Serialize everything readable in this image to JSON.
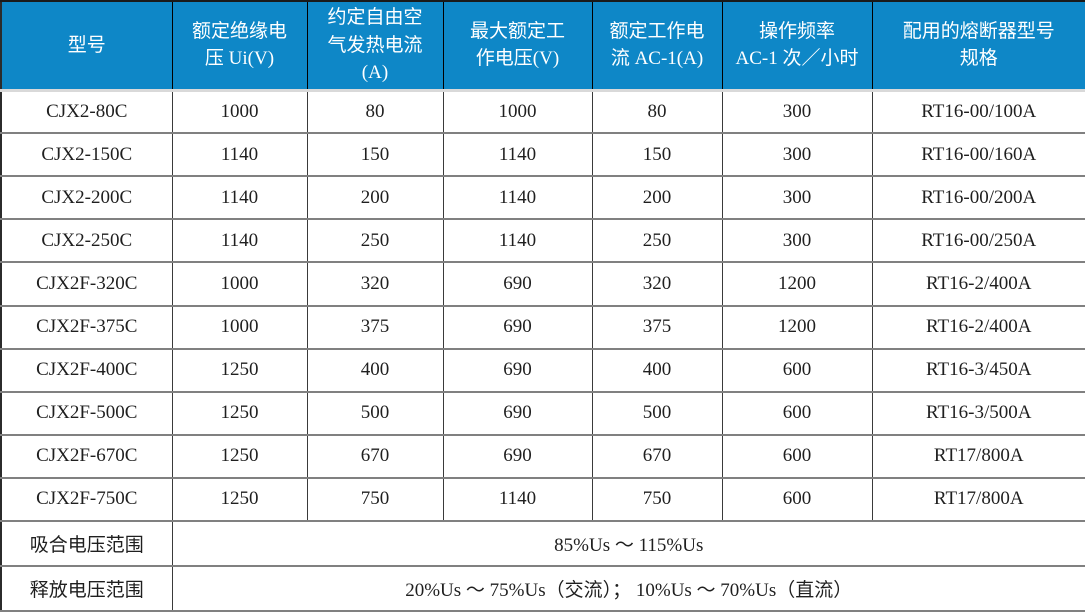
{
  "table": {
    "colors": {
      "header_bg": "#0e87c7",
      "header_text": "#ffffff",
      "grid_horizontal": "#808080",
      "grid_vertical": "#3a3a3a",
      "body_text": "#1f1f1f"
    },
    "columns": [
      "型号",
      "额定绝缘电\n压 Ui(V)",
      "约定自由空\n气发热电流\n(A)",
      "最大额定工\n作电压(V)",
      "额定工作电\n流 AC-1(A)",
      "操作频率\nAC-1 次／小时",
      "配用的熔断器型号\n规格"
    ],
    "rows": [
      [
        "CJX2-80C",
        "1000",
        "80",
        "1000",
        "80",
        "300",
        "RT16-00/100A"
      ],
      [
        "CJX2-150C",
        "1140",
        "150",
        "1140",
        "150",
        "300",
        "RT16-00/160A"
      ],
      [
        "CJX2-200C",
        "1140",
        "200",
        "1140",
        "200",
        "300",
        "RT16-00/200A"
      ],
      [
        "CJX2-250C",
        "1140",
        "250",
        "1140",
        "250",
        "300",
        "RT16-00/250A"
      ],
      [
        "CJX2F-320C",
        "1000",
        "320",
        "690",
        "320",
        "1200",
        "RT16-2/400A"
      ],
      [
        "CJX2F-375C",
        "1000",
        "375",
        "690",
        "375",
        "1200",
        "RT16-2/400A"
      ],
      [
        "CJX2F-400C",
        "1250",
        "400",
        "690",
        "400",
        "600",
        "RT16-3/450A"
      ],
      [
        "CJX2F-500C",
        "1250",
        "500",
        "690",
        "500",
        "600",
        "RT16-3/500A"
      ],
      [
        "CJX2F-670C",
        "1250",
        "670",
        "690",
        "670",
        "600",
        "RT17/800A"
      ],
      [
        "CJX2F-750C",
        "1250",
        "750",
        "1140",
        "750",
        "600",
        "RT17/800A"
      ]
    ],
    "footer": [
      {
        "label": "吸合电压范围",
        "value": "85%Us ～ 115%Us"
      },
      {
        "label": "释放电压范围",
        "value": "20%Us ～ 75%Us（交流）； 10%Us ～ 70%Us（直流）"
      }
    ]
  }
}
